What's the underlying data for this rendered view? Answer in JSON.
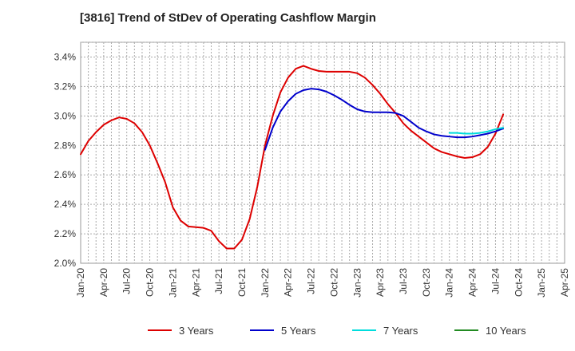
{
  "chart_data": {
    "type": "line",
    "title": "[3816]  Trend of StDev of Operating Cashflow Margin",
    "xlabel": "",
    "ylabel": "",
    "x_ticks": [
      "Jan-20",
      "Apr-20",
      "Jul-20",
      "Oct-20",
      "Jan-21",
      "Apr-21",
      "Jul-21",
      "Oct-21",
      "Jan-22",
      "Apr-22",
      "Jul-22",
      "Oct-22",
      "Jan-23",
      "Apr-23",
      "Jul-23",
      "Oct-23",
      "Jan-24",
      "Apr-24",
      "Jul-24",
      "Oct-24",
      "Jan-25",
      "Apr-25"
    ],
    "y_ticks": [
      "2.0%",
      "2.2%",
      "2.4%",
      "2.6%",
      "2.8%",
      "3.0%",
      "3.2%",
      "3.4%"
    ],
    "ylim": [
      2.0,
      3.5
    ],
    "y_unit": "%",
    "grid": true,
    "legend_position": "bottom",
    "series": [
      {
        "name": "3 Years",
        "color": "#dd0000",
        "points": [
          [
            "Jan-20",
            2.74
          ],
          [
            "Feb-20",
            2.83
          ],
          [
            "Mar-20",
            2.89
          ],
          [
            "Apr-20",
            2.94
          ],
          [
            "May-20",
            2.97
          ],
          [
            "Jun-20",
            2.99
          ],
          [
            "Jul-20",
            2.98
          ],
          [
            "Aug-20",
            2.95
          ],
          [
            "Sep-20",
            2.89
          ],
          [
            "Oct-20",
            2.8
          ],
          [
            "Nov-20",
            2.68
          ],
          [
            "Dec-20",
            2.55
          ],
          [
            "Jan-21",
            2.38
          ],
          [
            "Feb-21",
            2.29
          ],
          [
            "Mar-21",
            2.25
          ],
          [
            "Apr-21",
            2.245
          ],
          [
            "May-21",
            2.24
          ],
          [
            "Jun-21",
            2.22
          ],
          [
            "Jul-21",
            2.15
          ],
          [
            "Aug-21",
            2.1
          ],
          [
            "Sep-21",
            2.1
          ],
          [
            "Oct-21",
            2.16
          ],
          [
            "Nov-21",
            2.3
          ],
          [
            "Dec-21",
            2.52
          ],
          [
            "Jan-22",
            2.8
          ],
          [
            "Feb-22",
            3.0
          ],
          [
            "Mar-22",
            3.16
          ],
          [
            "Apr-22",
            3.26
          ],
          [
            "May-22",
            3.32
          ],
          [
            "Jun-22",
            3.34
          ],
          [
            "Jul-22",
            3.32
          ],
          [
            "Aug-22",
            3.305
          ],
          [
            "Sep-22",
            3.3
          ],
          [
            "Oct-22",
            3.3
          ],
          [
            "Nov-22",
            3.3
          ],
          [
            "Dec-22",
            3.3
          ],
          [
            "Jan-23",
            3.29
          ],
          [
            "Feb-23",
            3.26
          ],
          [
            "Mar-23",
            3.21
          ],
          [
            "Apr-23",
            3.15
          ],
          [
            "May-23",
            3.08
          ],
          [
            "Jun-23",
            3.02
          ],
          [
            "Jul-23",
            2.95
          ],
          [
            "Aug-23",
            2.9
          ],
          [
            "Sep-23",
            2.86
          ],
          [
            "Oct-23",
            2.82
          ],
          [
            "Nov-23",
            2.78
          ],
          [
            "Dec-23",
            2.755
          ],
          [
            "Jan-24",
            2.74
          ],
          [
            "Feb-24",
            2.725
          ],
          [
            "Mar-24",
            2.715
          ],
          [
            "Apr-24",
            2.72
          ],
          [
            "May-24",
            2.74
          ],
          [
            "Jun-24",
            2.79
          ],
          [
            "Jul-24",
            2.88
          ],
          [
            "Aug-24",
            3.01
          ]
        ]
      },
      {
        "name": "5 Years",
        "color": "#0000cc",
        "points": [
          [
            "Jan-22",
            2.77
          ],
          [
            "Feb-22",
            2.92
          ],
          [
            "Mar-22",
            3.03
          ],
          [
            "Apr-22",
            3.1
          ],
          [
            "May-22",
            3.15
          ],
          [
            "Jun-22",
            3.175
          ],
          [
            "Jul-22",
            3.185
          ],
          [
            "Aug-22",
            3.18
          ],
          [
            "Sep-22",
            3.165
          ],
          [
            "Oct-22",
            3.14
          ],
          [
            "Nov-22",
            3.11
          ],
          [
            "Dec-22",
            3.075
          ],
          [
            "Jan-23",
            3.045
          ],
          [
            "Feb-23",
            3.03
          ],
          [
            "Mar-23",
            3.025
          ],
          [
            "Apr-23",
            3.025
          ],
          [
            "May-23",
            3.025
          ],
          [
            "Jun-23",
            3.02
          ],
          [
            "Jul-23",
            3.0
          ],
          [
            "Aug-23",
            2.96
          ],
          [
            "Sep-23",
            2.92
          ],
          [
            "Oct-23",
            2.895
          ],
          [
            "Nov-23",
            2.875
          ],
          [
            "Dec-23",
            2.865
          ],
          [
            "Jan-24",
            2.86
          ],
          [
            "Feb-24",
            2.855
          ],
          [
            "Mar-24",
            2.855
          ],
          [
            "Apr-24",
            2.86
          ],
          [
            "May-24",
            2.87
          ],
          [
            "Jun-24",
            2.88
          ],
          [
            "Jul-24",
            2.895
          ],
          [
            "Aug-24",
            2.915
          ]
        ]
      },
      {
        "name": "7 Years",
        "color": "#00dddd",
        "points": [
          [
            "Jan-24",
            2.885
          ],
          [
            "Feb-24",
            2.885
          ],
          [
            "Mar-24",
            2.88
          ],
          [
            "Apr-24",
            2.88
          ],
          [
            "May-24",
            2.885
          ],
          [
            "Jun-24",
            2.895
          ],
          [
            "Jul-24",
            2.91
          ],
          [
            "Aug-24",
            2.92
          ]
        ]
      },
      {
        "name": "10 Years",
        "color": "#228b22",
        "points": []
      }
    ]
  }
}
